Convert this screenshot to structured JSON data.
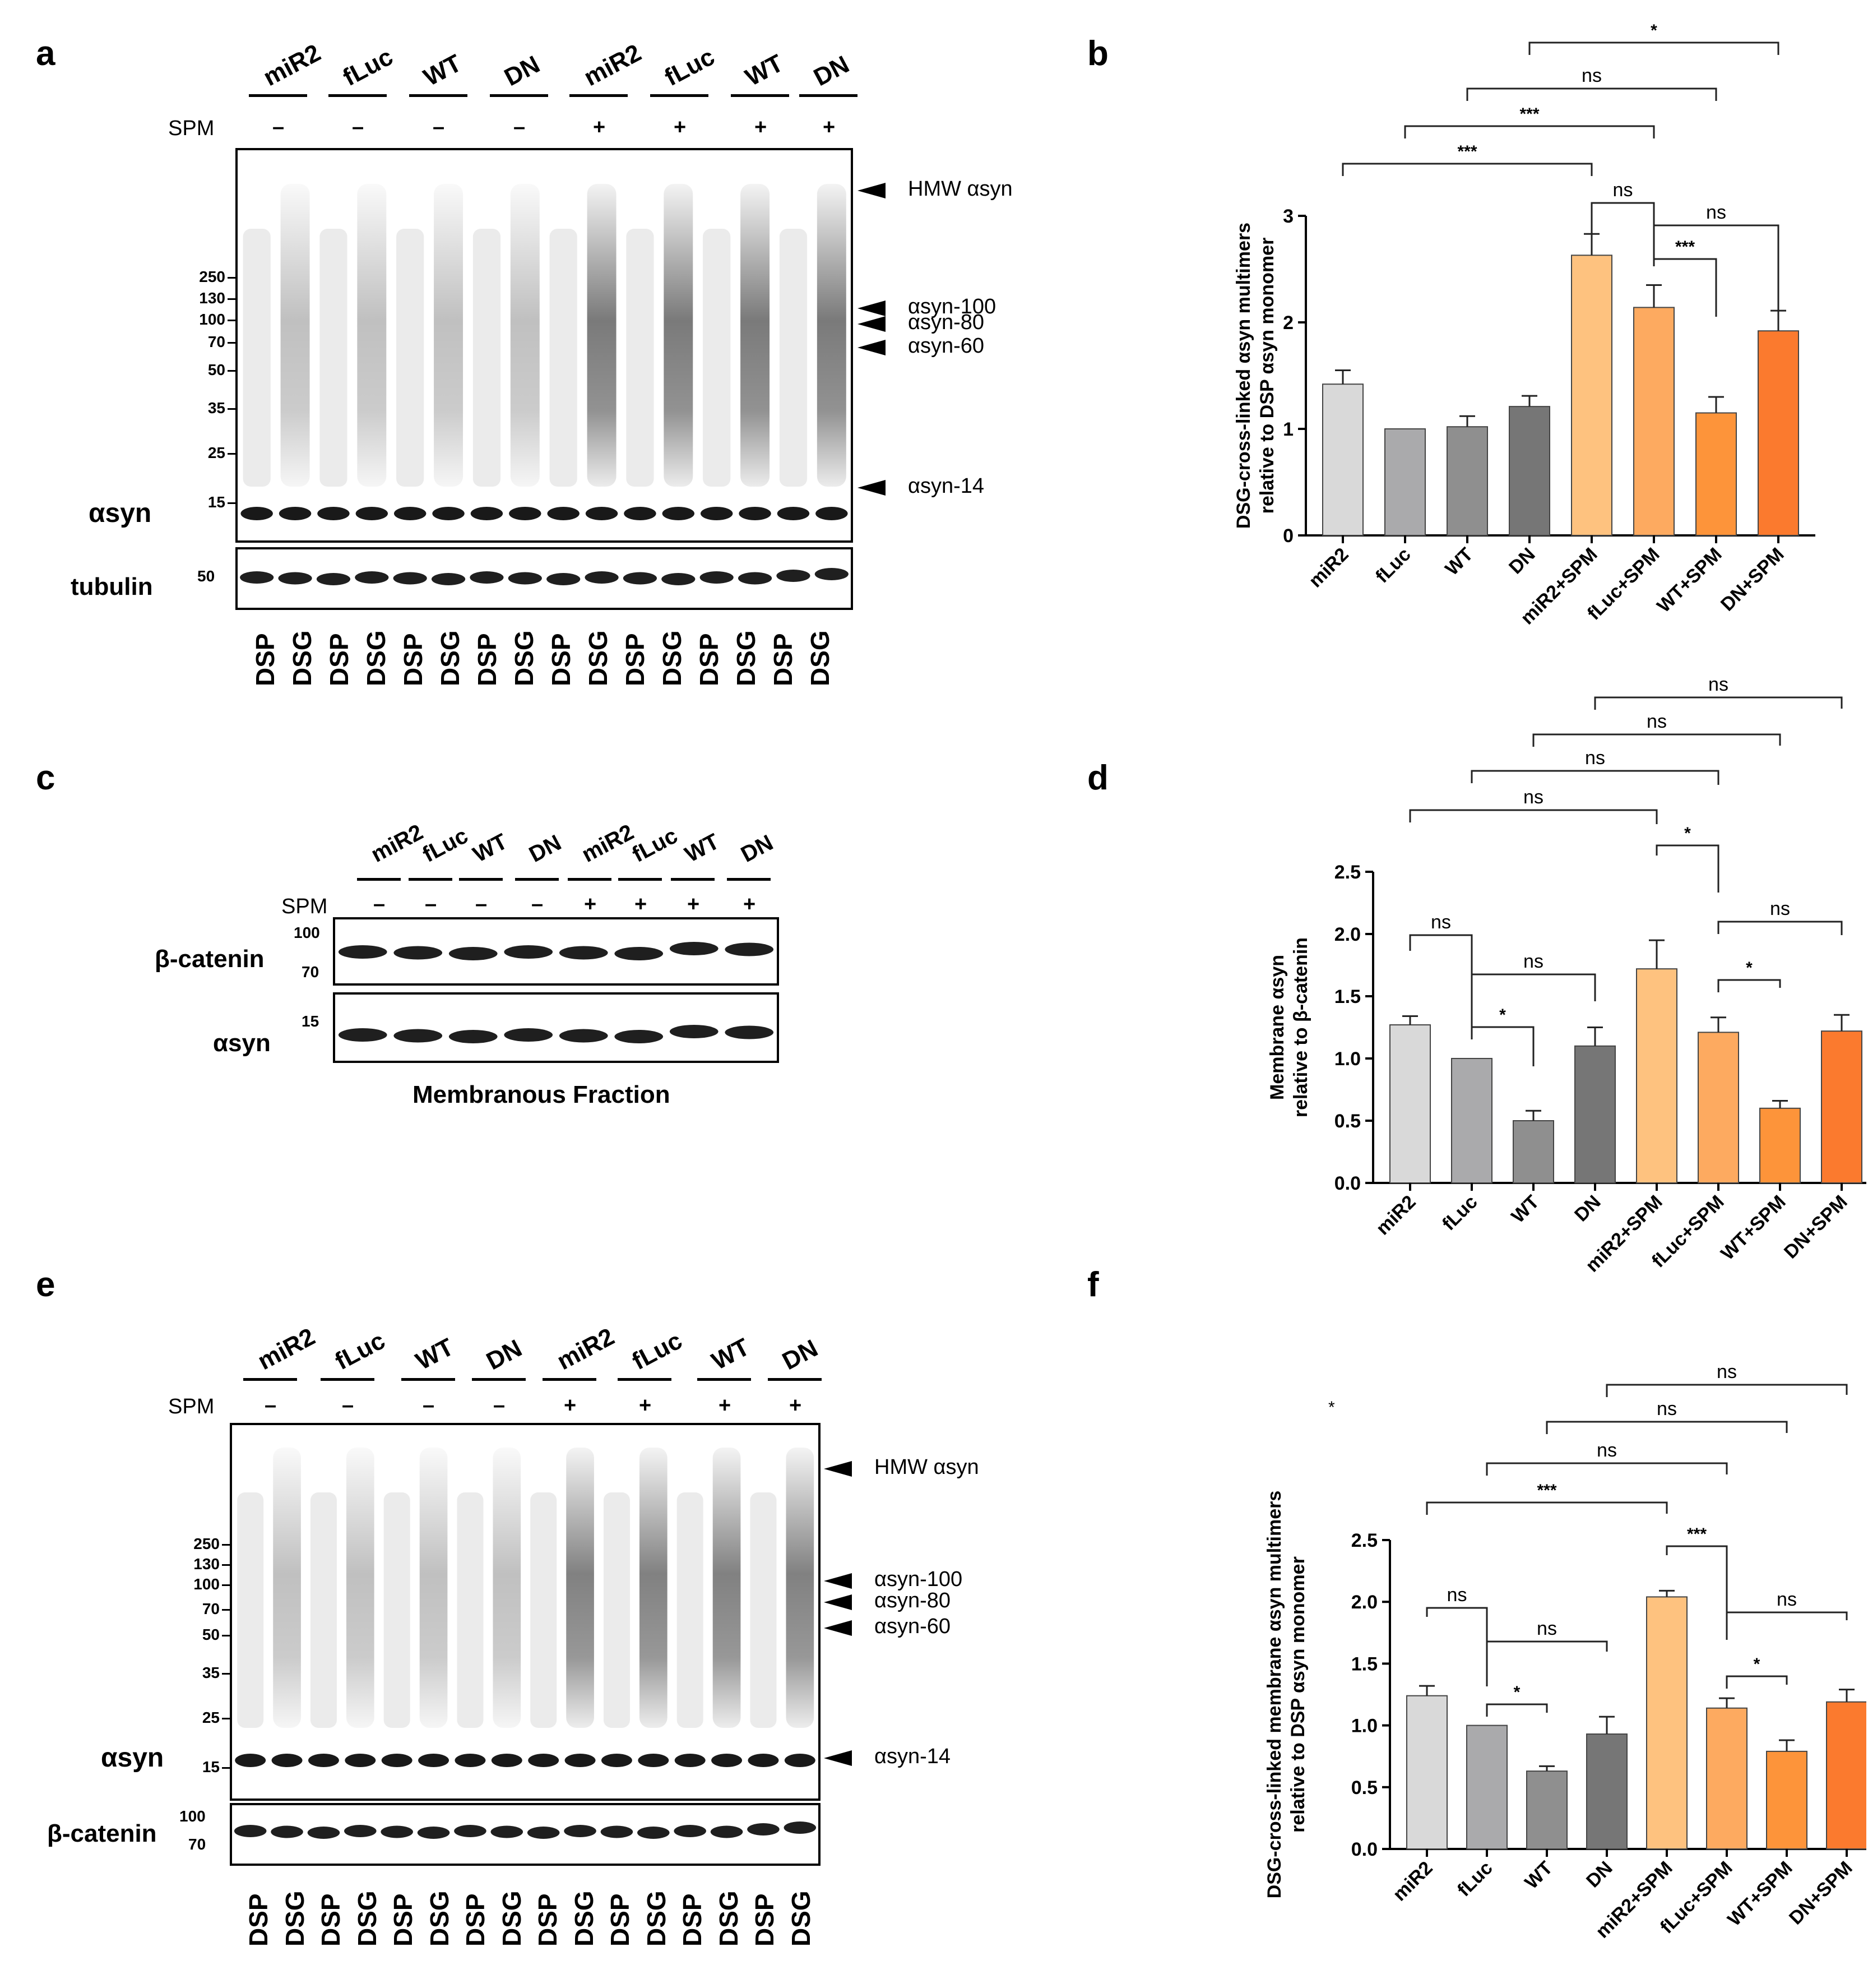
{
  "panels": {
    "a": "a",
    "b": "b",
    "c": "c",
    "d": "d",
    "e": "e",
    "f": "f"
  },
  "conditions": [
    "miR2",
    "fLuc",
    "WT",
    "DN",
    "miR2",
    "fLuc",
    "WT",
    "DN"
  ],
  "spm_label": "SPM",
  "spm_signs": [
    "–",
    "–",
    "–",
    "–",
    "+",
    "+",
    "+",
    "+"
  ],
  "crosslinker_lanes": [
    "DSP",
    "DSG",
    "DSP",
    "DSG",
    "DSP",
    "DSG",
    "DSP",
    "DSG",
    "DSP",
    "DSG",
    "DSP",
    "DSG",
    "DSP",
    "DSG",
    "DSP",
    "DSG"
  ],
  "blot_a": {
    "mw_markers": [
      "250",
      "130",
      "100",
      "70",
      "50",
      "35",
      "25",
      "15"
    ],
    "tubulin_marker": "50",
    "bands": [
      "HMW αsyn",
      "αsyn-100",
      "αsyn-80",
      "αsyn-60",
      "αsyn-14"
    ],
    "main_label": "αsyn",
    "loading_label": "tubulin"
  },
  "blot_c": {
    "top_label": "β-catenin",
    "bottom_label": "αsyn",
    "top_markers": [
      "100",
      "70"
    ],
    "bottom_markers": [
      "15"
    ],
    "caption": "Membranous Fraction"
  },
  "blot_e": {
    "mw_markers": [
      "250",
      "130",
      "100",
      "70",
      "50",
      "35",
      "25",
      "15"
    ],
    "loading_markers": [
      "100",
      "70"
    ],
    "bands": [
      "HMW αsyn",
      "αsyn-100",
      "αsyn-80",
      "αsyn-60",
      "αsyn-14"
    ],
    "main_label": "αsyn",
    "loading_label": "β-catenin"
  },
  "stray_mark": "*",
  "chart_data": [
    {
      "panel": "b",
      "type": "bar",
      "categories": [
        "miR2",
        "fLuc",
        "WT",
        "DN",
        "miR2+SPM",
        "fLuc+SPM",
        "WT+SPM",
        "DN+SPM"
      ],
      "values": [
        1.42,
        1.0,
        1.02,
        1.21,
        2.63,
        2.14,
        1.15,
        1.92
      ],
      "errors": [
        0.13,
        0,
        0.1,
        0.1,
        0.2,
        0.21,
        0.15,
        0.19
      ],
      "ylabel_lines": [
        "DSG-cross-linked αsyn multimers",
        "relative to DSP αsyn monomer"
      ],
      "ylim": [
        0,
        3
      ],
      "yticks": [
        "0",
        "1",
        "2",
        "3"
      ],
      "colors": [
        "#d9d9d9",
        "#aaaaac",
        "#8f8f8f",
        "#767676",
        "#fec27f",
        "#fdaa60",
        "#fd943a",
        "#fb7a2e"
      ],
      "significance": [
        "***",
        "***",
        "ns",
        "*",
        "ns",
        "***",
        "ns"
      ]
    },
    {
      "panel": "d",
      "type": "bar",
      "categories": [
        "miR2",
        "fLuc",
        "WT",
        "DN",
        "miR2+SPM",
        "fLuc+SPM",
        "WT+SPM",
        "DN+SPM"
      ],
      "values": [
        1.27,
        1.0,
        0.5,
        1.1,
        1.72,
        1.21,
        0.6,
        1.22
      ],
      "errors": [
        0.07,
        0,
        0.08,
        0.15,
        0.23,
        0.12,
        0.06,
        0.13
      ],
      "ylabel_lines": [
        "Membrane αsyn",
        "relative to β-catenin"
      ],
      "ylim": [
        0,
        2.5
      ],
      "yticks": [
        "0.0",
        "0.5",
        "1.0",
        "1.5",
        "2.0",
        "2.5"
      ],
      "colors": [
        "#d9d9d9",
        "#aaaaac",
        "#8f8f8f",
        "#767676",
        "#fec27f",
        "#fdaa60",
        "#fd943a",
        "#fb7a2e"
      ],
      "significance": [
        "ns",
        "*",
        "ns",
        "ns",
        "ns",
        "ns",
        "ns",
        "*",
        "ns",
        "*"
      ]
    },
    {
      "panel": "f",
      "type": "bar",
      "categories": [
        "miR2",
        "fLuc",
        "WT",
        "DN",
        "miR2+SPM",
        "fLuc+SPM",
        "WT+SPM",
        "DN+SPM"
      ],
      "values": [
        1.24,
        1.0,
        0.63,
        0.93,
        2.04,
        1.14,
        0.79,
        1.19
      ],
      "errors": [
        0.08,
        0,
        0.04,
        0.14,
        0.05,
        0.08,
        0.09,
        0.1
      ],
      "ylabel_lines": [
        "DSG-cross-linked membrane αsyn multimers",
        "relative to DSP αsyn monomer"
      ],
      "ylim": [
        0,
        2.5
      ],
      "yticks": [
        "0.0",
        "0.5",
        "1.0",
        "1.5",
        "2.0",
        "2.5"
      ],
      "colors": [
        "#d9d9d9",
        "#aaaaac",
        "#8f8f8f",
        "#767676",
        "#fec27f",
        "#fdaa60",
        "#fd943a",
        "#fb7a2e"
      ],
      "significance": [
        "ns",
        "*",
        "ns",
        "***",
        "ns",
        "ns",
        "ns",
        "***",
        "ns",
        "*"
      ]
    }
  ]
}
